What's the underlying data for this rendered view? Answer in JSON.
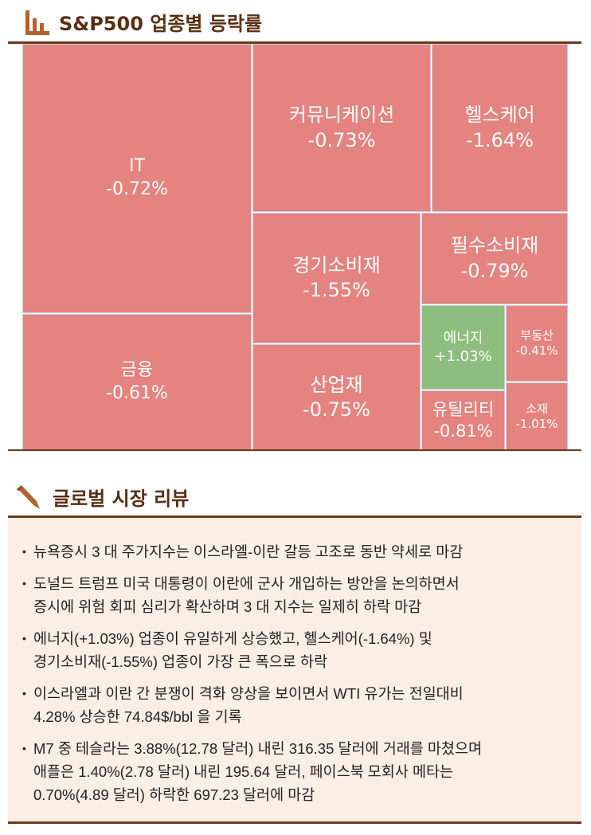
{
  "section1": {
    "title": "S&P500 업종별 등락률",
    "icon": "bar-chart-icon"
  },
  "chart_data": {
    "type": "treemap",
    "title": "S&P500 업종별 등락률",
    "colors": {
      "down": "#e4837f",
      "up": "#8dbe7f"
    },
    "cells": [
      {
        "label": "IT",
        "value_text": "-0.72%",
        "value": -0.72
      },
      {
        "label": "금융",
        "value_text": "-0.61%",
        "value": -0.61
      },
      {
        "label": "커뮤니케이션",
        "value_text": "-0.73%",
        "value": -0.73
      },
      {
        "label": "헬스케어",
        "value_text": "-1.64%",
        "value": -1.64
      },
      {
        "label": "경기소비재",
        "value_text": "-1.55%",
        "value": -1.55
      },
      {
        "label": "산업재",
        "value_text": "-0.75%",
        "value": -0.75
      },
      {
        "label": "필수소비재",
        "value_text": "-0.79%",
        "value": -0.79
      },
      {
        "label": "에너지",
        "value_text": "+1.03%",
        "value": 1.03
      },
      {
        "label": "유틸리티",
        "value_text": "-0.81%",
        "value": -0.81
      },
      {
        "label": "부동산",
        "value_text": "-0.41%",
        "value": -0.41
      },
      {
        "label": "소재",
        "value_text": "-1.01%",
        "value": -1.01
      }
    ]
  },
  "section2": {
    "title": "글로벌 시장 리뷰",
    "icon": "pen-icon",
    "bullets": [
      [
        "뉴욕증시 3 대 주가지수는 이스라엘-이란 갈등 고조로 동반 약세로 마감"
      ],
      [
        "도널드 트럼프 미국 대통령이 이란에 군사 개입하는 방안을 논의하면서",
        "증시에 위험 회피 심리가 확산하며 3 대 지수는 일제히 하락 마감"
      ],
      [
        "에너지(+1.03%) 업종이 유일하게 상승했고, 헬스케어(-1.64%) 및",
        "경기소비재(-1.55%) 업종이 가장 큰 폭으로 하락"
      ],
      [
        "이스라엘과 이란 간 분쟁이 격화 양상을 보이면서 WTI 유가는 전일대비",
        "4.28% 상승한 74.84$/bbl 을 기록"
      ],
      [
        "M7 중 테슬라는 3.88%(12.78 달러) 내린 316.35 달러에 거래를 마쳤으며",
        "애플은 1.40%(2.78 달러) 내린 195.64 달러, 페이스북 모회사 메타는",
        "0.70%(4.89 달러) 하락한 697.23 달러에 마감"
      ]
    ]
  }
}
